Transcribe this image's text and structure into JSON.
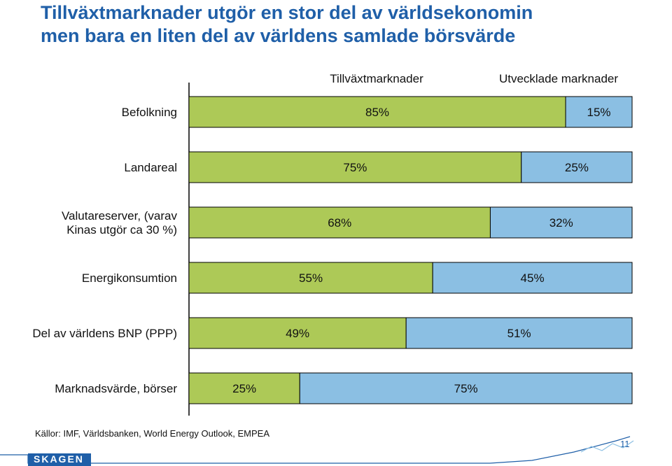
{
  "title": {
    "line1": "Tillväxtmarknader utgör en stor del av världsekonomin",
    "line2": "men bara en liten del av världens samlade börsvärde"
  },
  "chart_data": {
    "type": "bar",
    "orientation": "horizontal",
    "stacked": true,
    "categories": [
      "Befolkning",
      "Landareal",
      "Valutareserver, (varav\nKinas utgör ca 30 %)",
      "Energikonsumtion",
      "Del av världens BNP (PPP)",
      "Marknadsvärde, börser"
    ],
    "series": [
      {
        "name": "Tillväxtmarknader",
        "color": "#adc957",
        "values": [
          85,
          75,
          68,
          55,
          49,
          25
        ]
      },
      {
        "name": "Utvecklade marknader",
        "color": "#8bbfe3",
        "values": [
          15,
          25,
          32,
          45,
          51,
          75
        ]
      }
    ],
    "value_suffix": "%",
    "xlim": [
      0,
      100
    ],
    "legend": "top",
    "grid": false
  },
  "source": "Källor: IMF, Världsbanken, World Energy Outlook, EMPEA",
  "page_number": "11",
  "logo_text": "SKAGEN"
}
